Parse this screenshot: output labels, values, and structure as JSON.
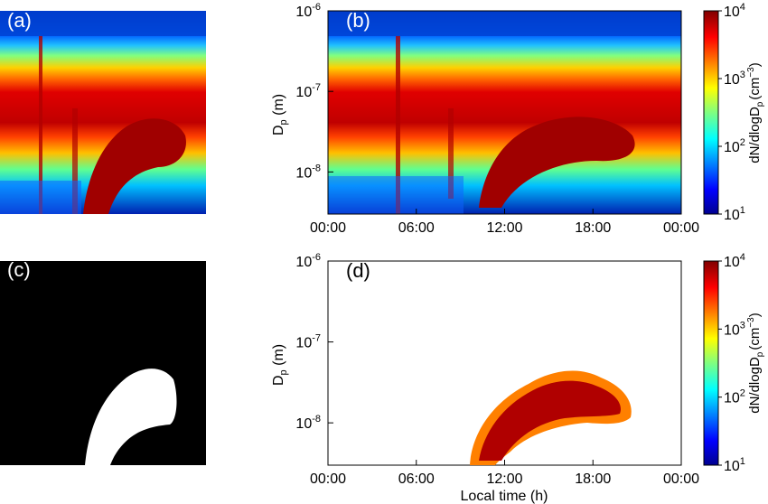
{
  "chart_data": [
    {
      "type": "heatmap",
      "panel": "(a)",
      "title": "",
      "description_values": "raw particle number size distribution, no axes shown",
      "colormap": "jet",
      "color_scale": "log",
      "clim": [
        10,
        10000
      ]
    },
    {
      "type": "heatmap",
      "panel": "(b)",
      "xlabel": "",
      "ylabel": "D_p (m)",
      "x_ticks": [
        "00:00",
        "06:00",
        "12:00",
        "18:00",
        "00:00"
      ],
      "y_ticks": [
        "10^-8",
        "10^-7",
        "10^-6"
      ],
      "y_scale": "log",
      "ylim": [
        3e-09,
        1e-06
      ],
      "xlim_hours": [
        0,
        24
      ],
      "colorbar": {
        "label": "dN/dlogD_p (cm^-3)",
        "ticks": [
          "10^1",
          "10^2",
          "10^3",
          "10^4"
        ],
        "clim": [
          10,
          10000
        ],
        "scale": "log"
      },
      "colormap": "jet"
    },
    {
      "type": "heatmap",
      "panel": "(c)",
      "description_values": "binary mask of new particle formation banana event",
      "colors": [
        "#000000",
        "#ffffff"
      ]
    },
    {
      "type": "heatmap",
      "panel": "(d)",
      "xlabel": "Local time (h)",
      "ylabel": "D_p (m)",
      "x_ticks": [
        "00:00",
        "06:00",
        "12:00",
        "18:00",
        "00:00"
      ],
      "y_ticks": [
        "10^-8",
        "10^-7",
        "10^-6"
      ],
      "y_scale": "log",
      "ylim": [
        3e-09,
        1e-06
      ],
      "xlim_hours": [
        0,
        24
      ],
      "colorbar": {
        "label": "dN/dlogD_p (cm^-3)",
        "ticks": [
          "10^1",
          "10^2",
          "10^3",
          "10^4"
        ],
        "clim": [
          10,
          10000
        ],
        "scale": "log"
      },
      "colormap": "jet"
    }
  ],
  "labels": {
    "a": "(a)",
    "b": "(b)",
    "c": "(c)",
    "d": "(d)",
    "ylabel_b": "D",
    "ylabel_b_sub": "p",
    "ylabel_b_unit": " (m)",
    "ylabel_d": "D",
    "ylabel_d_sub": "p",
    "ylabel_d_unit": " (m)",
    "xlabel_d": "Local time (h)",
    "cb_label_main": "dN/dlogD",
    "cb_label_sub": "p",
    "cb_label_unit": "(cm",
    "cb_label_exp": "−3",
    "cb_label_close": ")",
    "ten": "10"
  },
  "x_tick_labels": [
    "00:00",
    "06:00",
    "12:00",
    "18:00",
    "00:00"
  ],
  "y_tick_exponents": [
    "-8",
    "-7",
    "-6"
  ],
  "cb_tick_exponents": [
    "1",
    "2",
    "3",
    "4"
  ]
}
